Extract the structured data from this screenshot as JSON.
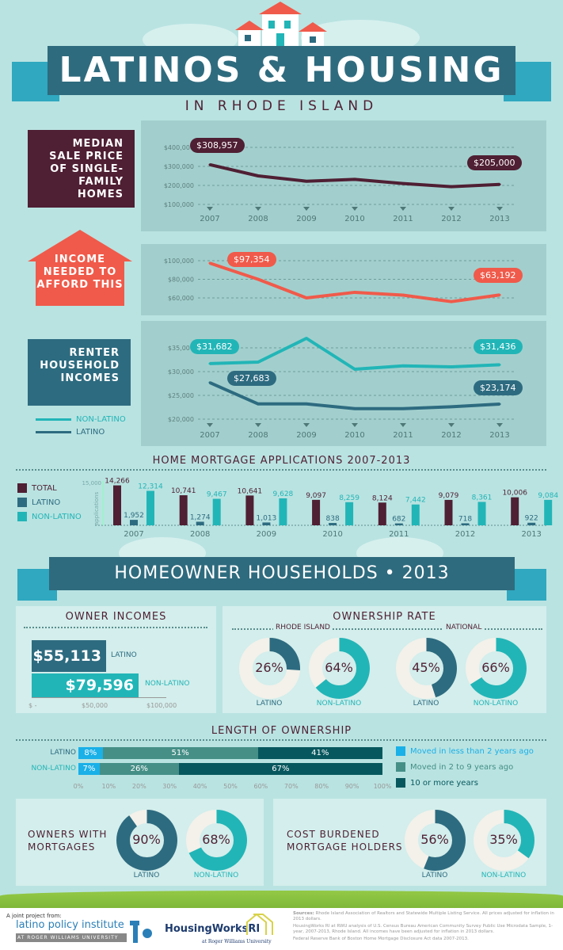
{
  "header": {
    "title": "LATINOS & HOUSING",
    "subtitle": "IN RHODE ISLAND"
  },
  "colors": {
    "maroon": "#4f1f33",
    "red": "#f05a4a",
    "teal": "#22b5b7",
    "darkblue": "#2d6b80",
    "darkest": "#07585e",
    "lightblue": "#1ab0e8",
    "midteal": "#458f87"
  },
  "sale_price": {
    "label": "MEDIAN SALE PRICE OF SINGLE-FAMILY HOMES",
    "callout_first": "$308,957",
    "callout_last": "$205,000"
  },
  "income_needed": {
    "label": "INCOME NEEDED TO AFFORD THIS",
    "callout_first": "$97,354",
    "callout_last": "$63,192"
  },
  "renter": {
    "label": "RENTER HOUSEHOLD INCOMES",
    "callout_nl_first": "$31,682",
    "callout_nl_last": "$31,436",
    "callout_l_first": "$27,683",
    "callout_l_last": "$23,174",
    "legend_non_latino": "NON-LATINO",
    "legend_latino": "LATINO"
  },
  "mortgage": {
    "title": "HOME MORTGAGE APPLICATIONS 2007-2013",
    "legend": [
      "TOTAL",
      "LATINO",
      "NON-LATINO"
    ],
    "axis_label": "applications",
    "axis_tick": "15,000"
  },
  "homeowner": {
    "title": "HOMEOWNER HOUSEHOLDS • 2013"
  },
  "owner_incomes": {
    "title": "OWNER INCOMES",
    "latino_value": "$55,113",
    "latino_label": "LATINO",
    "nonlatino_value": "$79,596",
    "nonlatino_label": "NON-LATINO",
    "ticks": [
      "$ -",
      "$50,000",
      "$100,000"
    ]
  },
  "ownership_rate": {
    "title": "OWNERSHIP RATE",
    "ri_label": "RHODE ISLAND",
    "nat_label": "NATIONAL",
    "donuts": [
      {
        "value": 26,
        "text": "26%",
        "label": "LATINO"
      },
      {
        "value": 64,
        "text": "64%",
        "label": "NON-LATINO"
      },
      {
        "value": 45,
        "text": "45%",
        "label": "LATINO"
      },
      {
        "value": 66,
        "text": "66%",
        "label": "NON-LATINO"
      }
    ]
  },
  "length": {
    "title": "LENGTH OF OWNERSHIP",
    "rows": [
      {
        "label": "LATINO",
        "segs": [
          {
            "v": 8,
            "t": "8%"
          },
          {
            "v": 51,
            "t": "51%"
          },
          {
            "v": 41,
            "t": "41%"
          }
        ]
      },
      {
        "label": "NON-LATINO",
        "segs": [
          {
            "v": 7,
            "t": "7%"
          },
          {
            "v": 26,
            "t": "26%"
          },
          {
            "v": 67,
            "t": "67%"
          }
        ]
      }
    ],
    "ticks": [
      "0%",
      "10%",
      "20%",
      "30%",
      "40%",
      "50%",
      "60%",
      "70%",
      "80%",
      "90%",
      "100%"
    ],
    "legend": [
      "Moved in less than 2 years ago",
      "Moved in 2  to 9 years ago",
      "10 or more years"
    ]
  },
  "mortgages": {
    "title": "OWNERS WITH MORTGAGES",
    "donuts": [
      {
        "value": 90,
        "text": "90%",
        "label": "LATINO"
      },
      {
        "value": 68,
        "text": "68%",
        "label": "NON-LATINO"
      }
    ]
  },
  "burdened": {
    "title": "COST BURDENED MORTGAGE HOLDERS",
    "donuts": [
      {
        "value": 56,
        "text": "56%",
        "label": "LATINO"
      },
      {
        "value": 35,
        "text": "35%",
        "label": "NON-LATINO"
      }
    ]
  },
  "footer": {
    "joint": "A joint project from:",
    "lpi": "latino policy institute",
    "lpi_sub": "AT ROGER WILLIAMS UNIVERSITY",
    "hw": "HousingWorksRI",
    "hw_sub": "at Roger Williams University",
    "sources_bold": "Sources:",
    "source1": "Rhode Island Association of Realtors and Statewide Multiple Listing Service. All prices adjusted for inflation in 2013 dollars.",
    "source2": "HousingWorks RI at RWU analysis of U.S. Census Bureau American Community Survey Public Use Microdata Sample, 1-year, 2007-2013, Rhode Island. All incomes have been adjusted for inflation in 2013 dollars.",
    "source3": "Federal Reserve Bank of Boston Home Mortgage Disclosure Act data 2007-2013."
  },
  "chart_data": [
    {
      "type": "line",
      "title": "Median Sale Price of Single-Family Homes",
      "x": [
        "2007",
        "2008",
        "2009",
        "2010",
        "2011",
        "2012",
        "2013"
      ],
      "series": [
        {
          "name": "Median sale price",
          "values": [
            308957,
            250000,
            222000,
            232000,
            210000,
            193000,
            205000
          ]
        }
      ],
      "yticks": [
        "$400,000",
        "$300,000",
        "$200,000",
        "$100,000"
      ],
      "ylim": [
        100000,
        400000
      ]
    },
    {
      "type": "line",
      "title": "Income Needed to Afford This",
      "x": [
        "2007",
        "2008",
        "2009",
        "2010",
        "2011",
        "2012",
        "2013"
      ],
      "series": [
        {
          "name": "Income needed",
          "values": [
            97354,
            80000,
            60000,
            66000,
            63000,
            56000,
            63192
          ]
        }
      ],
      "yticks": [
        "$100,000",
        "$80,000",
        "$60,000"
      ],
      "ylim": [
        60000,
        100000
      ]
    },
    {
      "type": "line",
      "title": "Renter Household Incomes",
      "x": [
        "2007",
        "2008",
        "2009",
        "2010",
        "2011",
        "2012",
        "2013"
      ],
      "series": [
        {
          "name": "NON-LATINO",
          "values": [
            31682,
            32000,
            37000,
            30500,
            31200,
            31000,
            31436
          ]
        },
        {
          "name": "LATINO",
          "values": [
            27683,
            23200,
            23200,
            22200,
            22200,
            22600,
            23174
          ]
        }
      ],
      "yticks": [
        "$35,000",
        "$30,000",
        "$25,000",
        "$20,000"
      ],
      "ylim": [
        20000,
        35000
      ]
    },
    {
      "type": "bar",
      "title": "HOME MORTGAGE APPLICATIONS 2007-2013",
      "categories": [
        "2007",
        "2008",
        "2009",
        "2010",
        "2011",
        "2012",
        "2013"
      ],
      "series": [
        {
          "name": "TOTAL",
          "values": [
            14266,
            10741,
            10641,
            9097,
            8124,
            9079,
            10006
          ],
          "labels": [
            "14,266",
            "10,741",
            "10,641",
            "9,097",
            "8,124",
            "9,079",
            "10,006"
          ]
        },
        {
          "name": "LATINO",
          "values": [
            1952,
            1274,
            1013,
            838,
            682,
            718,
            922
          ],
          "labels": [
            "1,952",
            "1,274",
            "1,013",
            "838",
            "682",
            "718",
            "922"
          ]
        },
        {
          "name": "NON-LATINO",
          "values": [
            12314,
            9467,
            9628,
            8259,
            7442,
            8361,
            9084
          ],
          "labels": [
            "12,314",
            "9,467",
            "9,628",
            "8,259",
            "7,442",
            "8,361",
            "9,084"
          ]
        }
      ],
      "ylim": [
        0,
        15000
      ]
    },
    {
      "type": "bar",
      "title": "OWNER INCOMES",
      "categories": [
        "LATINO",
        "NON-LATINO"
      ],
      "values": [
        55113,
        79596
      ],
      "xlim": [
        0,
        100000
      ]
    }
  ]
}
